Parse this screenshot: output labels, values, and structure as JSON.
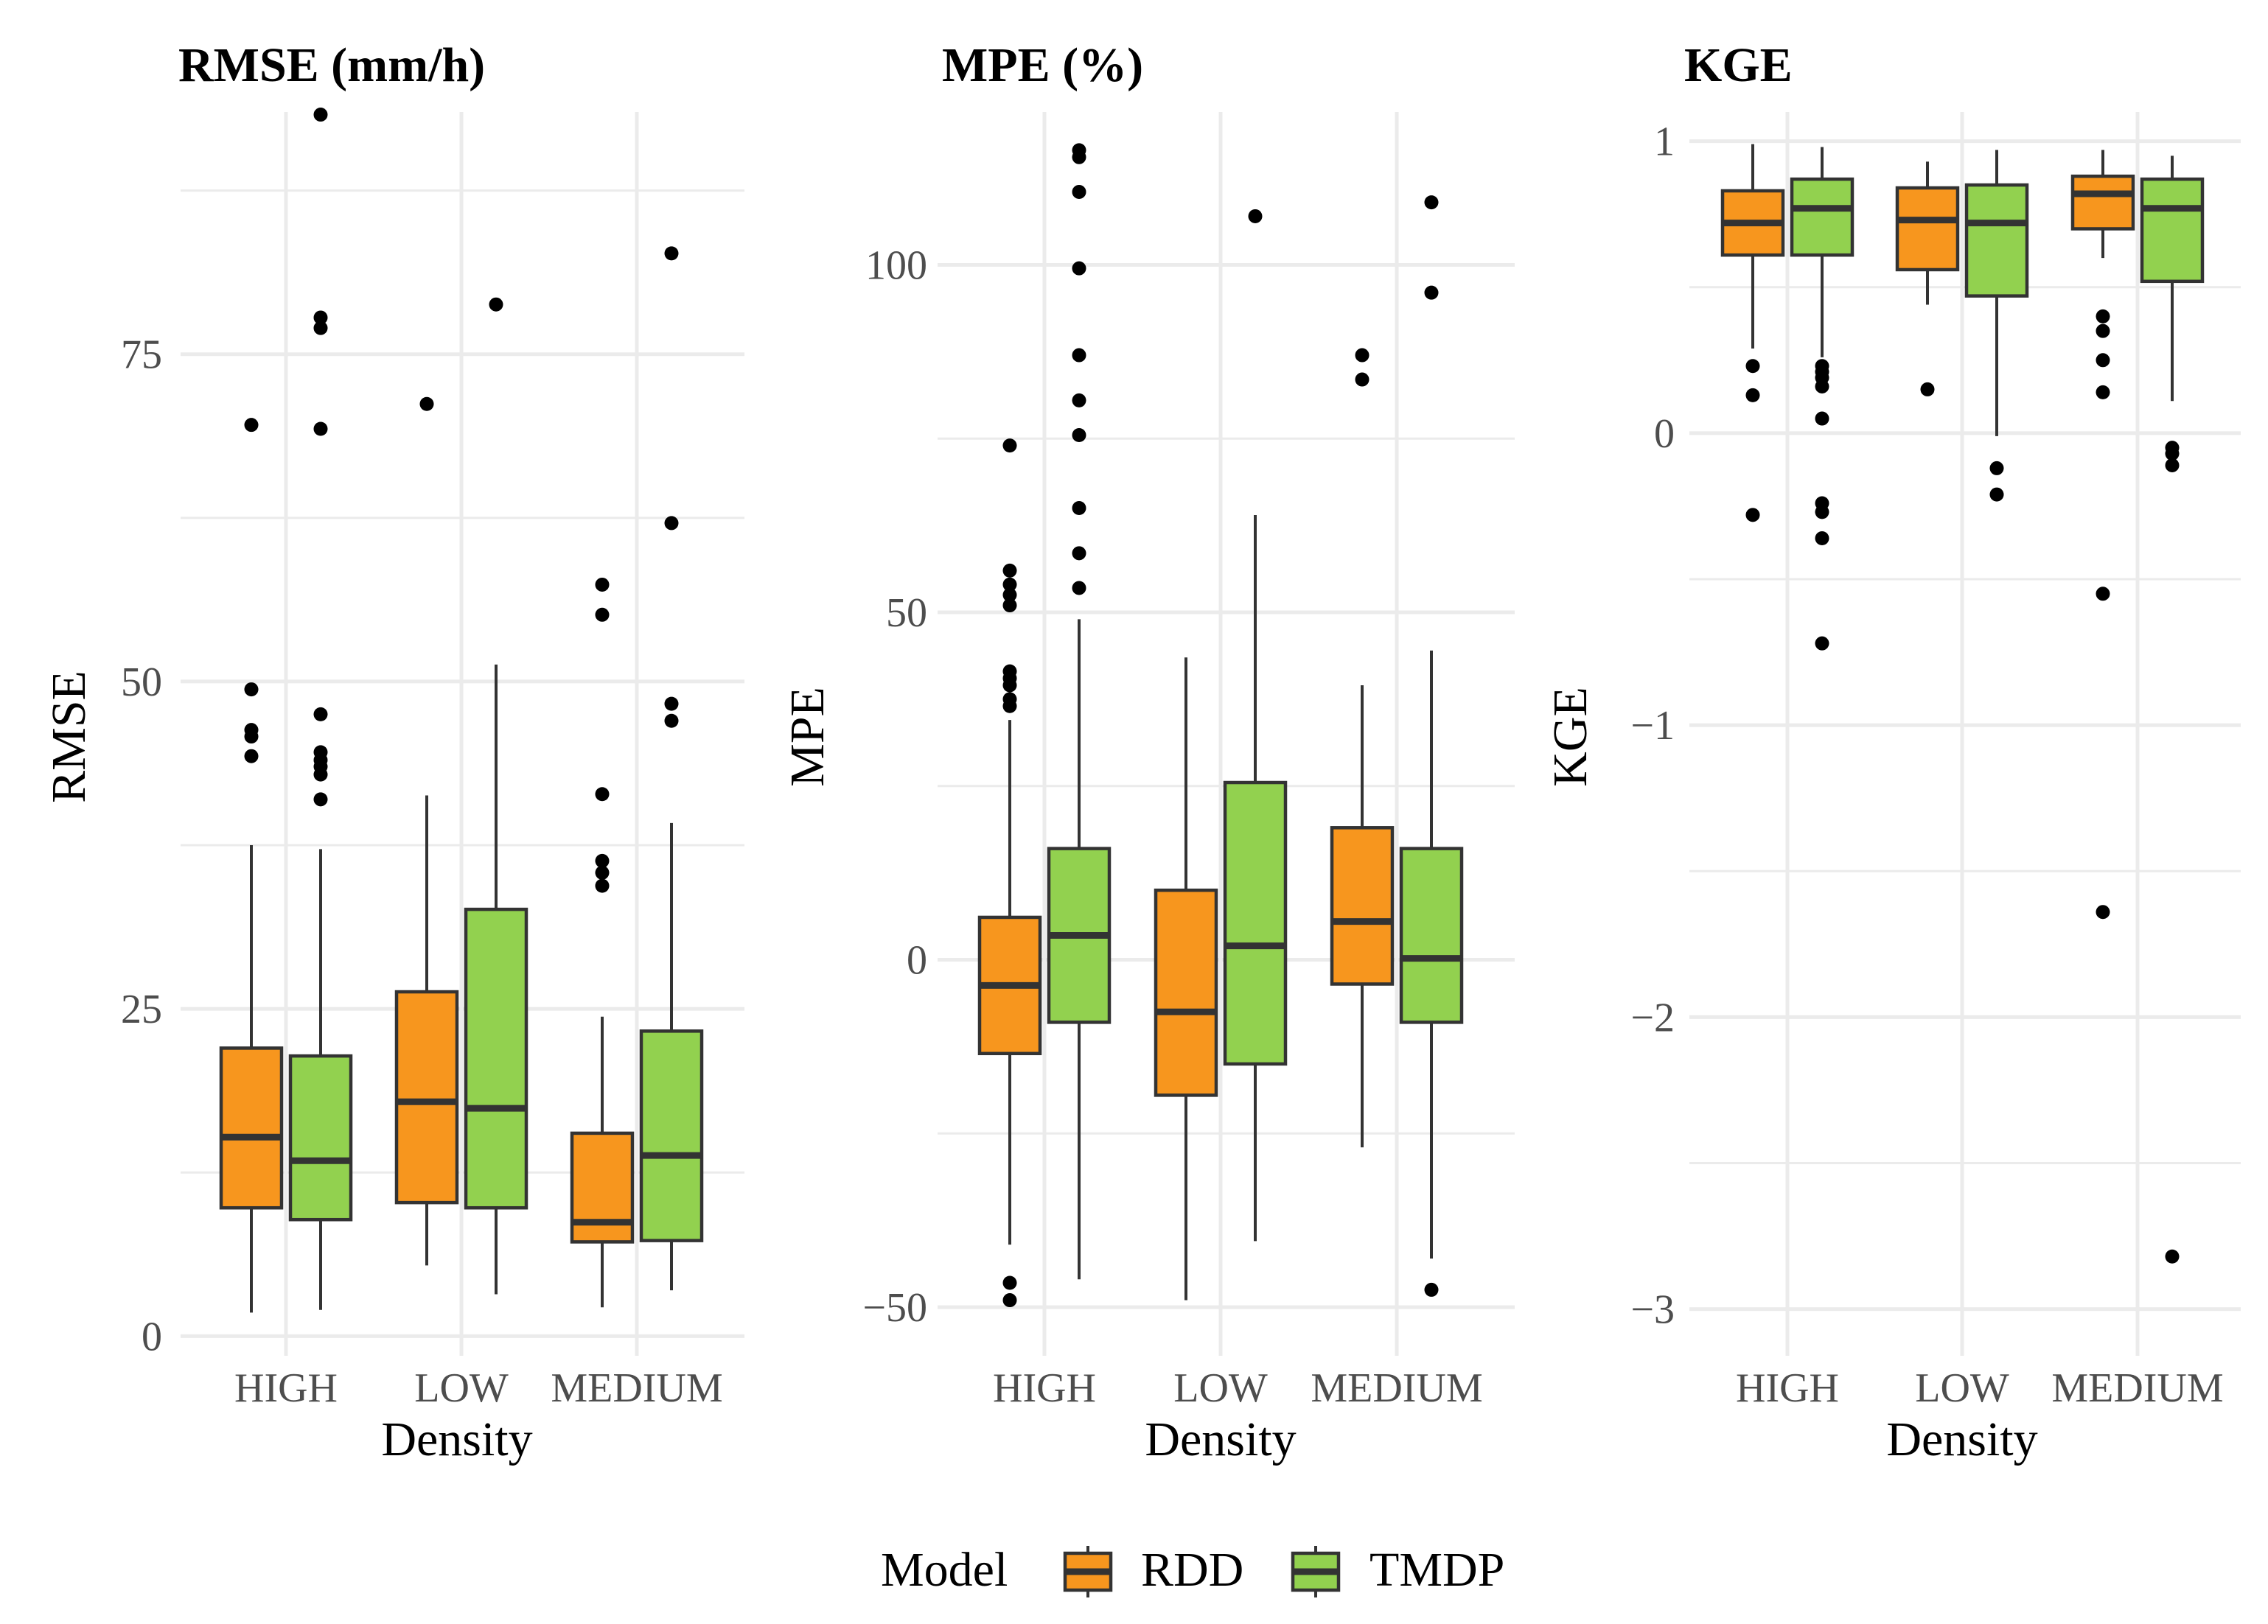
{
  "chart_data": [
    {
      "type": "box",
      "title": "RMSE (mm/h)",
      "xlabel": "Density",
      "ylabel": "RMSE",
      "categories": [
        "HIGH",
        "LOW",
        "MEDIUM"
      ],
      "ylim": [
        -1.5,
        93.5
      ],
      "yticks": [
        0,
        25,
        50,
        75
      ],
      "yticklabels": [
        "0",
        "25",
        "50",
        "75"
      ],
      "minor_ticks": [
        12.5,
        37.5,
        62.5,
        87.5
      ],
      "series": [
        {
          "name": "RDD",
          "boxes": [
            {
              "category": "HIGH",
              "min": 1.8,
              "q1": 9.8,
              "median": 15.2,
              "q3": 22.0,
              "max": 37.5,
              "outliers": [
                44.3,
                45.8,
                46.3,
                49.4,
                69.6
              ]
            },
            {
              "category": "LOW",
              "min": 5.4,
              "q1": 10.2,
              "median": 17.9,
              "q3": 26.3,
              "max": 41.3,
              "outliers": [
                71.2
              ]
            },
            {
              "category": "MEDIUM",
              "min": 2.2,
              "q1": 7.2,
              "median": 8.7,
              "q3": 15.5,
              "max": 24.4,
              "outliers": [
                34.4,
                35.4,
                36.3,
                41.4,
                55.1,
                57.4
              ]
            }
          ]
        },
        {
          "name": "TMDP",
          "boxes": [
            {
              "category": "HIGH",
              "min": 2.0,
              "q1": 8.9,
              "median": 13.4,
              "q3": 21.4,
              "max": 37.2,
              "outliers": [
                41.0,
                42.9,
                43.5,
                44.0,
                44.6,
                47.5,
                69.3,
                77.0,
                77.8,
                93.3
              ]
            },
            {
              "category": "LOW",
              "min": 3.2,
              "q1": 9.8,
              "median": 17.4,
              "q3": 32.6,
              "max": 51.3,
              "outliers": [
                78.8
              ]
            },
            {
              "category": "MEDIUM",
              "min": 3.5,
              "q1": 7.3,
              "median": 13.8,
              "q3": 23.3,
              "max": 39.2,
              "outliers": [
                47.0,
                48.3,
                62.1,
                82.7
              ]
            }
          ]
        }
      ]
    },
    {
      "type": "box",
      "title": "MPE (%)",
      "xlabel": "Density",
      "ylabel": "MPE",
      "categories": [
        "HIGH",
        "LOW",
        "MEDIUM"
      ],
      "ylim": [
        -57,
        122
      ],
      "yticks": [
        -50,
        0,
        50,
        100
      ],
      "yticklabels": [
        "−50",
        "0",
        "50",
        "100"
      ],
      "minor_ticks": [
        -25,
        25,
        75
      ],
      "series": [
        {
          "name": "RDD",
          "boxes": [
            {
              "category": "HIGH",
              "min": -41.0,
              "q1": -13.5,
              "median": -3.7,
              "q3": 6.1,
              "max": 34.5,
              "outliers": [
                -49.0,
                -46.5,
                36.5,
                37.5,
                39.5,
                40.5,
                41.5,
                51.0,
                52.5,
                54.0,
                56.0,
                74.0
              ]
            },
            {
              "category": "LOW",
              "min": -49.0,
              "q1": -19.5,
              "median": -7.5,
              "q3": 10.0,
              "max": 43.5,
              "outliers": []
            },
            {
              "category": "MEDIUM",
              "min": -27.0,
              "q1": -3.5,
              "median": 5.5,
              "q3": 19.0,
              "max": 39.5,
              "outliers": [
                83.5,
                87.0
              ]
            }
          ]
        },
        {
          "name": "TMDP",
          "boxes": [
            {
              "category": "HIGH",
              "min": -46.0,
              "q1": -9.0,
              "median": 3.5,
              "q3": 16.0,
              "max": 49.0,
              "outliers": [
                53.5,
                58.5,
                65.0,
                75.5,
                80.5,
                87.0,
                99.5,
                110.5,
                115.5,
                116.5
              ]
            },
            {
              "category": "LOW",
              "min": -40.5,
              "q1": -15.0,
              "median": 2.0,
              "q3": 25.5,
              "max": 64.0,
              "outliers": [
                107.0
              ]
            },
            {
              "category": "MEDIUM",
              "min": -43.0,
              "q1": -9.0,
              "median": 0.2,
              "q3": 16.0,
              "max": 44.5,
              "outliers": [
                -47.5,
                96.0,
                109.0
              ]
            }
          ]
        }
      ]
    },
    {
      "type": "box",
      "title": "KGE",
      "xlabel": "Density",
      "ylabel": "KGE",
      "categories": [
        "HIGH",
        "LOW",
        "MEDIUM"
      ],
      "ylim": [
        -3.16,
        1.1
      ],
      "yticks": [
        -3,
        -2,
        -1,
        0,
        1
      ],
      "yticklabels": [
        "−3",
        "−2",
        "−1",
        "0",
        "1"
      ],
      "minor_ticks": [
        -2.5,
        -1.5,
        -0.5,
        0.5
      ],
      "series": [
        {
          "name": "RDD",
          "boxes": [
            {
              "category": "HIGH",
              "min": 0.29,
              "q1": 0.61,
              "median": 0.72,
              "q3": 0.83,
              "max": 0.99,
              "outliers": [
                -0.28,
                0.13,
                0.23
              ]
            },
            {
              "category": "LOW",
              "min": 0.44,
              "q1": 0.56,
              "median": 0.73,
              "q3": 0.84,
              "max": 0.93,
              "outliers": [
                0.15
              ]
            },
            {
              "category": "MEDIUM",
              "min": 0.6,
              "q1": 0.7,
              "median": 0.82,
              "q3": 0.88,
              "max": 0.97,
              "outliers": [
                -1.64,
                -0.55,
                0.14,
                0.25,
                0.35,
                0.4
              ]
            }
          ]
        },
        {
          "name": "TMDP",
          "boxes": [
            {
              "category": "HIGH",
              "min": 0.26,
              "q1": 0.61,
              "median": 0.77,
              "q3": 0.87,
              "max": 0.98,
              "outliers": [
                -0.72,
                -0.36,
                -0.27,
                -0.24,
                0.05,
                0.16,
                0.19,
                0.21,
                0.23
              ]
            },
            {
              "category": "LOW",
              "min": -0.01,
              "q1": 0.47,
              "median": 0.72,
              "q3": 0.85,
              "max": 0.97,
              "outliers": [
                -0.21,
                -0.12
              ]
            },
            {
              "category": "MEDIUM",
              "min": 0.11,
              "q1": 0.52,
              "median": 0.77,
              "q3": 0.87,
              "max": 0.95,
              "outliers": [
                -2.82,
                -0.11,
                -0.07,
                -0.05
              ]
            }
          ]
        }
      ]
    }
  ],
  "legend": {
    "title": "Model",
    "items": [
      {
        "label": "RDD",
        "color": "#f7961e"
      },
      {
        "label": "TMDP",
        "color": "#92d14f"
      }
    ]
  },
  "colors": {
    "RDD": "#f7961e",
    "TMDP": "#92d14f",
    "outline": "#333333",
    "grid": "#ebebeb",
    "point": "#000000"
  }
}
